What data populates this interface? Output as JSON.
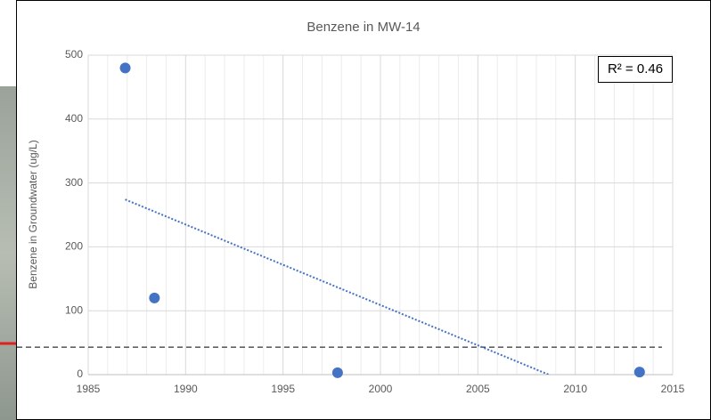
{
  "chart_data": {
    "type": "scatter",
    "title": "Benzene in MW-14",
    "y_label": "Benzene in Groundwater (ug/L)",
    "annotation": "R² = 0.46",
    "series": [
      {
        "name": "MW-14",
        "color": "#4472c4",
        "x": [
          1986.9,
          1988.4,
          1997.8,
          2013.3
        ],
        "values": [
          480,
          120,
          3,
          4
        ]
      }
    ],
    "trendline": {
      "style": "dotted",
      "color": "#4472c4"
    },
    "hline": 43,
    "xlim": [
      1985,
      2015
    ],
    "xticks": [
      1985,
      1990,
      1995,
      2000,
      2005,
      2010,
      2015
    ],
    "ylim": [
      0,
      500
    ],
    "yticks": [
      0,
      100,
      200,
      300,
      400,
      500
    ],
    "grid": true
  }
}
